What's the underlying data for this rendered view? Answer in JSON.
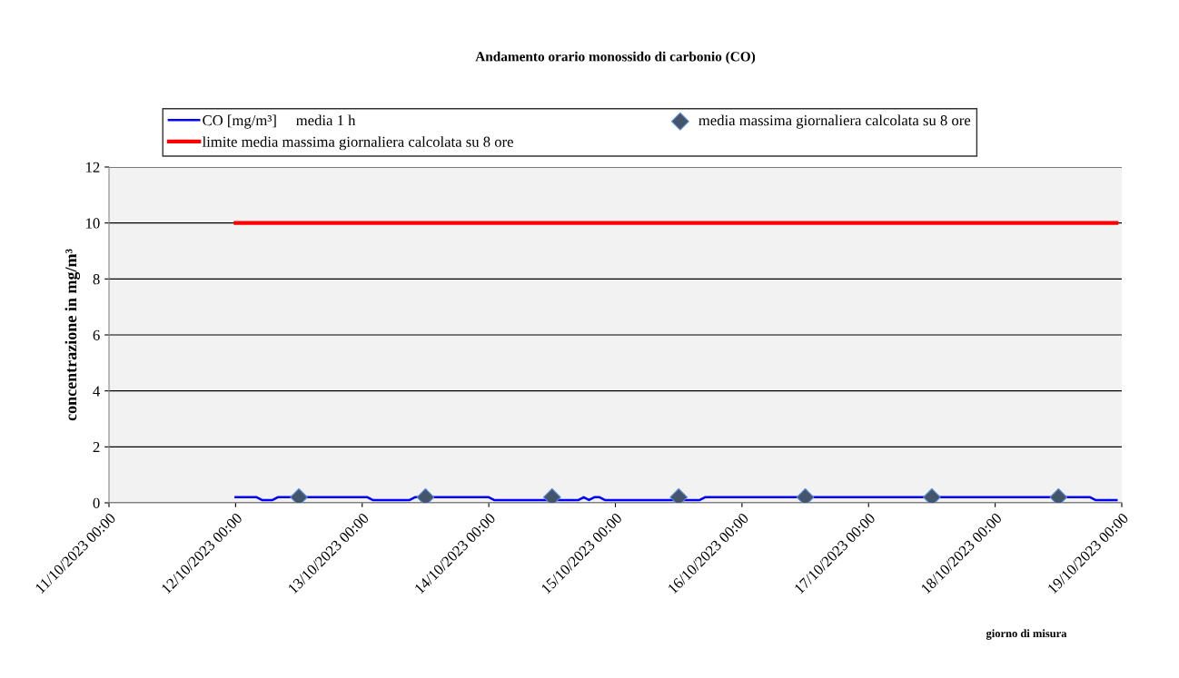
{
  "chart_data": {
    "type": "line",
    "title": "Andamento orario monossido di carbonio (CO)",
    "xlabel": "giorno di misura",
    "ylabel": "concentrazione in mg/m³",
    "xlim": [
      "2023-10-11T00:00",
      "2023-10-19T00:00"
    ],
    "xticks": [
      {
        "value": "2023-10-11T00:00",
        "label": "11/10/2023 00:00"
      },
      {
        "value": "2023-10-12T00:00",
        "label": "12/10/2023 00:00"
      },
      {
        "value": "2023-10-13T00:00",
        "label": "13/10/2023 00:00"
      },
      {
        "value": "2023-10-14T00:00",
        "label": "14/10/2023 00:00"
      },
      {
        "value": "2023-10-15T00:00",
        "label": "15/10/2023 00:00"
      },
      {
        "value": "2023-10-16T00:00",
        "label": "16/10/2023 00:00"
      },
      {
        "value": "2023-10-17T00:00",
        "label": "17/10/2023 00:00"
      },
      {
        "value": "2023-10-18T00:00",
        "label": "18/10/2023 00:00"
      },
      {
        "value": "2023-10-19T00:00",
        "label": "19/10/2023 00:00"
      }
    ],
    "ylim": [
      0,
      12
    ],
    "yticks": [
      0,
      2,
      4,
      6,
      8,
      10,
      12
    ],
    "grid": "y",
    "legend": "top",
    "series": [
      {
        "name": "CO [mg/m³]     media 1 h",
        "color": "#0000ff",
        "marker": "none",
        "x": [
          "2023-10-12T00:00",
          "2023-10-12T04:00",
          "2023-10-12T05:00",
          "2023-10-12T07:00",
          "2023-10-12T08:00",
          "2023-10-13T01:00",
          "2023-10-13T02:00",
          "2023-10-13T09:00",
          "2023-10-13T10:00",
          "2023-10-14T00:00",
          "2023-10-14T01:00",
          "2023-10-14T17:00",
          "2023-10-14T18:00",
          "2023-10-14T19:00",
          "2023-10-14T20:00",
          "2023-10-14T21:00",
          "2023-10-14T22:00",
          "2023-10-15T16:00",
          "2023-10-15T17:00",
          "2023-10-18T18:00",
          "2023-10-18T19:00",
          "2023-10-18T23:00"
        ],
        "values": [
          0.2,
          0.2,
          0.1,
          0.1,
          0.2,
          0.2,
          0.1,
          0.1,
          0.2,
          0.2,
          0.1,
          0.1,
          0.2,
          0.1,
          0.2,
          0.2,
          0.1,
          0.1,
          0.2,
          0.2,
          0.1,
          0.1
        ]
      },
      {
        "name": "media massima giornaliera calcolata su 8 ore",
        "type": "scatter",
        "color": "#44546a",
        "marker": "diamond",
        "x": [
          "2023-10-12T12:00",
          "2023-10-13T12:00",
          "2023-10-14T12:00",
          "2023-10-15T12:00",
          "2023-10-16T12:00",
          "2023-10-17T12:00",
          "2023-10-18T12:00"
        ],
        "values": [
          0.2,
          0.2,
          0.2,
          0.2,
          0.2,
          0.2,
          0.2
        ]
      },
      {
        "name": "limite media massima giornaliera calcolata su 8 ore",
        "type": "line",
        "color": "#ff0000",
        "marker": "none",
        "x": [
          "2023-10-12T00:00",
          "2023-10-18T23:00"
        ],
        "values": [
          10,
          10
        ]
      }
    ]
  }
}
